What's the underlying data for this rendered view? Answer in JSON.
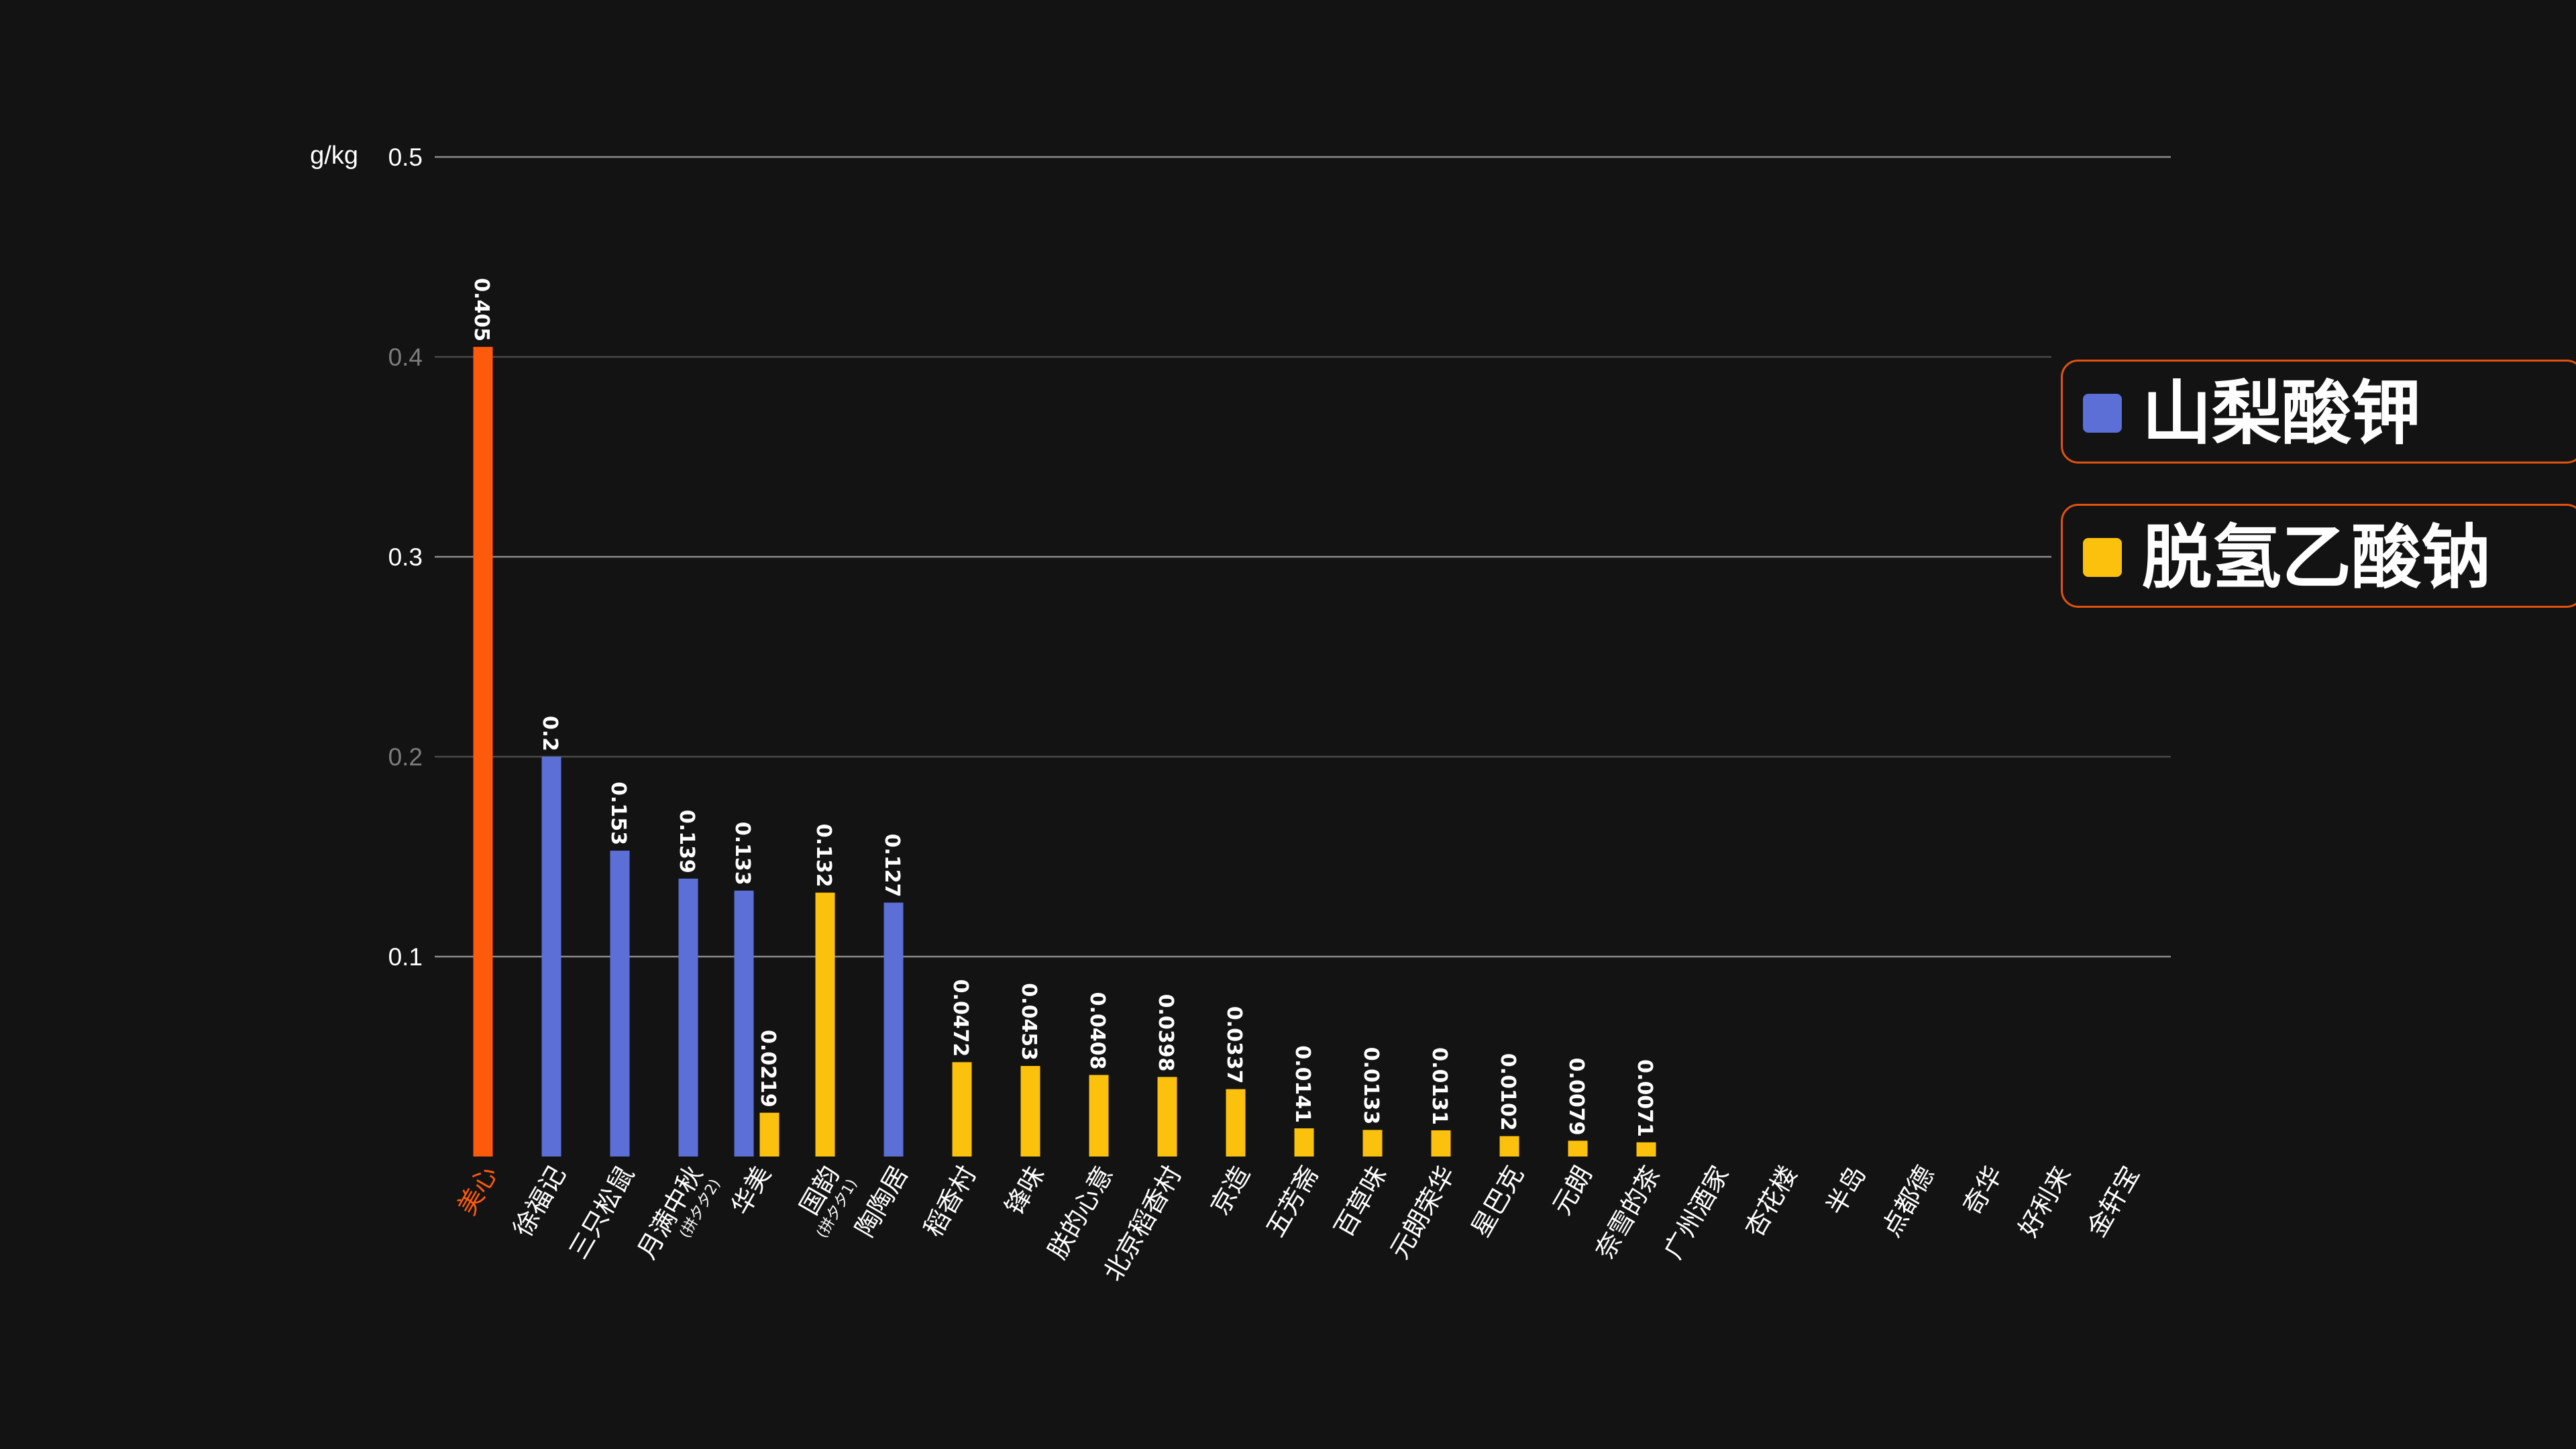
{
  "chart_data": {
    "type": "bar",
    "ylabel": "g/kg",
    "ylim": [
      0,
      0.5
    ],
    "yticks": [
      "0.5",
      "0.4",
      "0.3",
      "0.2",
      "0.1"
    ],
    "grid": true,
    "legend_position": "right",
    "series": [
      {
        "name": "山梨酸钾",
        "color": "#5b6fd6"
      },
      {
        "name": "脱氢乙酸钠",
        "color": "#fcc10c"
      }
    ],
    "highlight_color": "#fe5a0c",
    "categories": [
      {
        "name": "美心",
        "highlight": true,
        "bars": [
          {
            "series": "山梨酸钾",
            "value": 0.405,
            "label": "0.405"
          }
        ]
      },
      {
        "name": "徐福记",
        "bars": [
          {
            "series": "山梨酸钾",
            "value": 0.2,
            "label": "0.2"
          }
        ]
      },
      {
        "name": "三只松鼠",
        "bars": [
          {
            "series": "山梨酸钾",
            "value": 0.153,
            "label": "0.153"
          }
        ]
      },
      {
        "name": "月满中秋",
        "sub": "(拼夕夕2)",
        "bars": [
          {
            "series": "山梨酸钾",
            "value": 0.139,
            "label": "0.139"
          }
        ]
      },
      {
        "name": "华美",
        "bars": [
          {
            "series": "山梨酸钾",
            "value": 0.133,
            "label": "0.133"
          },
          {
            "series": "脱氢乙酸钠",
            "value": 0.0219,
            "label": "0.0219"
          }
        ]
      },
      {
        "name": "国韵",
        "sub": "(拼夕夕1)",
        "bars": [
          {
            "series": "脱氢乙酸钠",
            "value": 0.132,
            "label": "0.132"
          }
        ]
      },
      {
        "name": "陶陶居",
        "bars": [
          {
            "series": "山梨酸钾",
            "value": 0.127,
            "label": "0.127"
          }
        ]
      },
      {
        "name": "稻香村",
        "bars": [
          {
            "series": "脱氢乙酸钠",
            "value": 0.0472,
            "label": "0.0472"
          }
        ]
      },
      {
        "name": "锋味",
        "bars": [
          {
            "series": "脱氢乙酸钠",
            "value": 0.0453,
            "label": "0.0453"
          }
        ]
      },
      {
        "name": "朕的心意",
        "bars": [
          {
            "series": "脱氢乙酸钠",
            "value": 0.0408,
            "label": "0.0408"
          }
        ]
      },
      {
        "name": "北京稻香村",
        "bars": [
          {
            "series": "脱氢乙酸钠",
            "value": 0.0398,
            "label": "0.0398"
          }
        ]
      },
      {
        "name": "京造",
        "bars": [
          {
            "series": "脱氢乙酸钠",
            "value": 0.0337,
            "label": "0.0337"
          }
        ]
      },
      {
        "name": "五芳斋",
        "bars": [
          {
            "series": "脱氢乙酸钠",
            "value": 0.0141,
            "label": "0.0141"
          }
        ]
      },
      {
        "name": "百草味",
        "bars": [
          {
            "series": "脱氢乙酸钠",
            "value": 0.0133,
            "label": "0.0133"
          }
        ]
      },
      {
        "name": "元朗荣华",
        "bars": [
          {
            "series": "脱氢乙酸钠",
            "value": 0.0131,
            "label": "0.0131"
          }
        ]
      },
      {
        "name": "星巴克",
        "bars": [
          {
            "series": "脱氢乙酸钠",
            "value": 0.0102,
            "label": "0.0102"
          }
        ]
      },
      {
        "name": "元朗",
        "bars": [
          {
            "series": "脱氢乙酸钠",
            "value": 0.0079,
            "label": "0.0079"
          }
        ]
      },
      {
        "name": "奈雪的茶",
        "bars": [
          {
            "series": "脱氢乙酸钠",
            "value": 0.0071,
            "label": "0.0071"
          }
        ]
      },
      {
        "name": "广州酒家",
        "bars": []
      },
      {
        "name": "杏花楼",
        "bars": []
      },
      {
        "name": "半岛",
        "bars": []
      },
      {
        "name": "点都德",
        "bars": []
      },
      {
        "name": "奇华",
        "bars": []
      },
      {
        "name": "好利来",
        "bars": []
      },
      {
        "name": "金轩宝",
        "bars": []
      }
    ]
  }
}
